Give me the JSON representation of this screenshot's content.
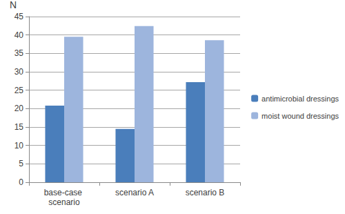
{
  "chart_data": {
    "type": "bar",
    "y_label": "N",
    "categories": [
      "base-case scenario",
      "scenario A",
      "scenario B"
    ],
    "series": [
      {
        "name": "antimicrobial dressings",
        "color": "#4a7ebb",
        "values": [
          20.8,
          14.5,
          27.2
        ]
      },
      {
        "name": "moist wound dressings",
        "color": "#9db5dd",
        "values": [
          39.5,
          42.4,
          38.6
        ]
      }
    ],
    "ylim": [
      0,
      45
    ],
    "yticks": [
      0,
      5,
      10,
      15,
      20,
      25,
      30,
      35,
      40,
      45
    ],
    "grid": true,
    "legend": "right"
  }
}
